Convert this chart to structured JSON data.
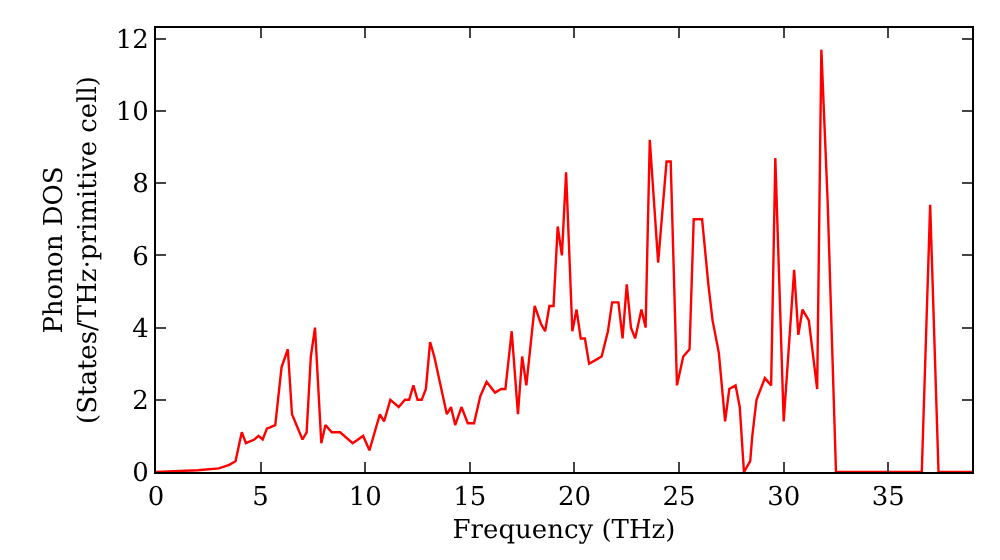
{
  "chart_data": {
    "type": "line",
    "xlabel": "Frequency (THz)",
    "ylabel": "Phonon DOS\n(States/THz·primitive cell)",
    "x": [
      0,
      2,
      3,
      3.5,
      3.8,
      4.1,
      4.3,
      4.7,
      4.9,
      5.1,
      5.3,
      5.7,
      6.0,
      6.3,
      6.5,
      7.0,
      7.2,
      7.4,
      7.6,
      7.9,
      8.1,
      8.4,
      8.8,
      9.4,
      9.9,
      10.2,
      10.7,
      10.9,
      11.2,
      11.4,
      11.6,
      11.9,
      12.1,
      12.3,
      12.5,
      12.7,
      12.9,
      13.1,
      13.3,
      13.9,
      14.1,
      14.3,
      14.6,
      14.9,
      15.2,
      15.5,
      15.8,
      16.2,
      16.5,
      16.7,
      17.0,
      17.3,
      17.5,
      17.7,
      18.1,
      18.4,
      18.6,
      18.8,
      19.0,
      19.2,
      19.4,
      19.6,
      19.9,
      20.1,
      20.3,
      20.5,
      20.7,
      21.0,
      21.3,
      21.6,
      21.8,
      22.1,
      22.3,
      22.5,
      22.7,
      22.9,
      23.2,
      23.4,
      23.6,
      24.0,
      24.4,
      24.6,
      24.9,
      25.2,
      25.5,
      25.7,
      26.1,
      26.4,
      26.6,
      26.9,
      27.2,
      27.4,
      27.7,
      27.9,
      28.1,
      28.4,
      28.5,
      28.7,
      29.1,
      29.4,
      29.6,
      30.0,
      30.5,
      30.7,
      30.9,
      31.2,
      31.6,
      31.8,
      32.1,
      32.5,
      36.6,
      37.0,
      37.4,
      39
    ],
    "series": [
      {
        "color": "#ff0000",
        "values": [
          0,
          0.05,
          0.1,
          0.2,
          0.3,
          1.1,
          0.8,
          0.9,
          1.0,
          0.9,
          1.2,
          1.3,
          2.9,
          3.4,
          1.6,
          0.9,
          1.1,
          3.2,
          4.0,
          0.8,
          1.3,
          1.1,
          1.1,
          0.8,
          1.0,
          0.6,
          1.6,
          1.4,
          2.0,
          1.9,
          1.8,
          2.0,
          2.0,
          2.4,
          2.0,
          2.0,
          2.3,
          3.6,
          3.2,
          1.6,
          1.8,
          1.3,
          1.8,
          1.35,
          1.35,
          2.1,
          2.5,
          2.2,
          2.3,
          2.3,
          3.9,
          1.6,
          3.2,
          2.4,
          4.6,
          4.1,
          3.9,
          4.6,
          4.6,
          6.8,
          6.0,
          8.3,
          3.9,
          4.5,
          3.7,
          3.7,
          3.0,
          3.1,
          3.2,
          3.9,
          4.7,
          4.7,
          3.7,
          5.2,
          4.0,
          3.7,
          4.5,
          4.0,
          9.2,
          5.8,
          8.6,
          8.6,
          2.4,
          3.2,
          3.4,
          7.0,
          7.0,
          5.2,
          4.2,
          3.3,
          1.4,
          2.3,
          2.4,
          1.8,
          0,
          0.3,
          1.0,
          2.0,
          2.6,
          2.4,
          8.7,
          1.4,
          5.6,
          3.8,
          4.5,
          4.2,
          2.3,
          11.7,
          7.5,
          0,
          0,
          7.4,
          0,
          0
        ]
      }
    ],
    "xlim": [
      0,
      39
    ],
    "ylim": [
      0,
      12.3
    ],
    "xticks": [
      0,
      5,
      10,
      15,
      20,
      25,
      30,
      35
    ],
    "yticks": [
      0,
      2,
      4,
      6,
      8,
      10,
      12
    ],
    "grid": false,
    "marker": "none",
    "line_style": "solid"
  }
}
